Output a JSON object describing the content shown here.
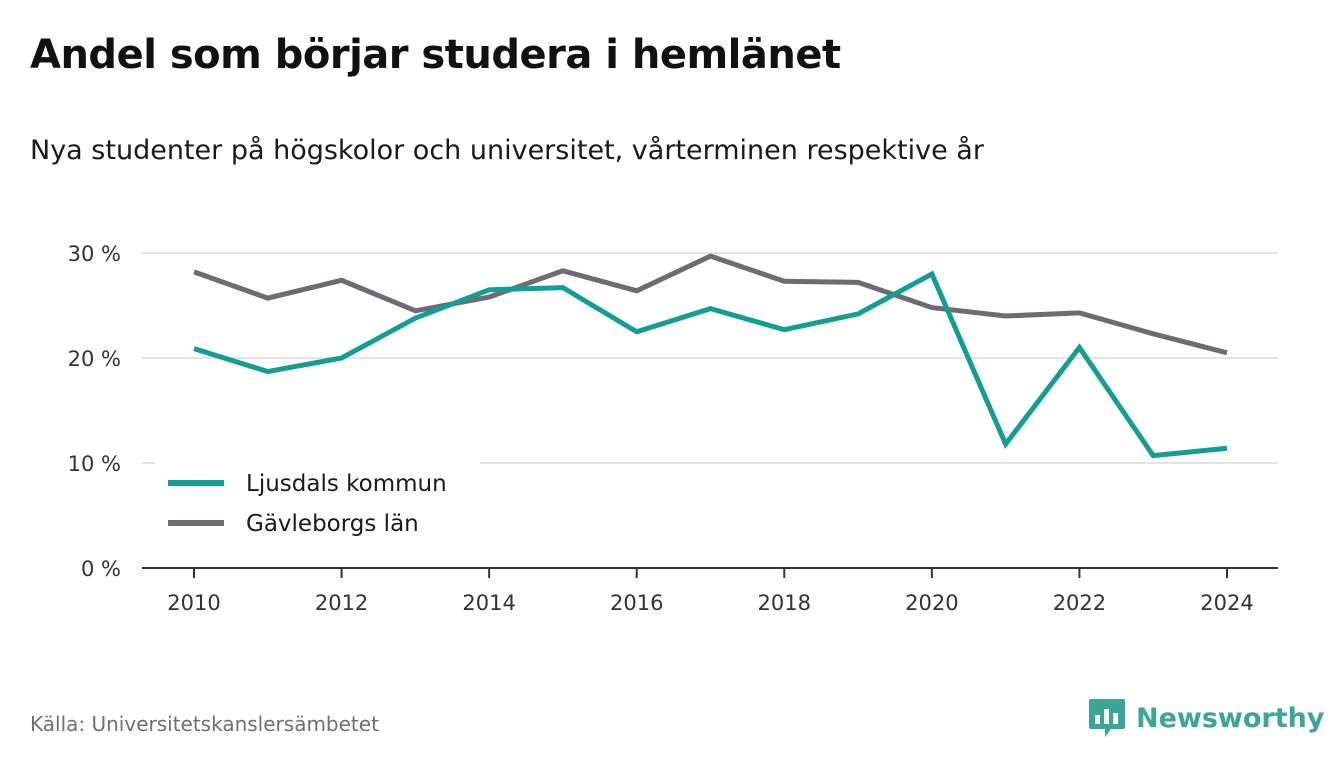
{
  "title": "Andel som börjar studera i hemlänet",
  "subtitle": "Nya studenter på högskolor och universitet, vårterminen respektive år",
  "source": "Källa: Universitetskanslersämbetet",
  "brand": "Newsworthy",
  "chart_data": {
    "type": "line",
    "x": [
      2010,
      2011,
      2012,
      2013,
      2014,
      2015,
      2016,
      2017,
      2018,
      2019,
      2020,
      2021,
      2022,
      2023,
      2024
    ],
    "x_ticks": [
      "2010",
      "2012",
      "2014",
      "2016",
      "2018",
      "2020",
      "2022",
      "2024"
    ],
    "y_ticks": [
      "0 %",
      "10 %",
      "20 %",
      "30 %"
    ],
    "ylim": [
      0,
      30
    ],
    "grid": true,
    "legend_position": "bottom-left",
    "series": [
      {
        "name": "Ljusdals kommun",
        "color": "#139e94",
        "values": [
          20.9,
          18.7,
          20.0,
          23.8,
          26.5,
          26.7,
          22.5,
          24.7,
          22.7,
          24.2,
          28.0,
          11.8,
          21.0,
          10.7,
          11.4
        ]
      },
      {
        "name": "Gävleborgs län",
        "color": "#6e6b73",
        "values": [
          28.2,
          25.7,
          27.4,
          24.5,
          25.8,
          28.3,
          26.4,
          29.7,
          27.3,
          27.2,
          24.8,
          24.0,
          24.3,
          22.3,
          20.5
        ]
      }
    ]
  }
}
